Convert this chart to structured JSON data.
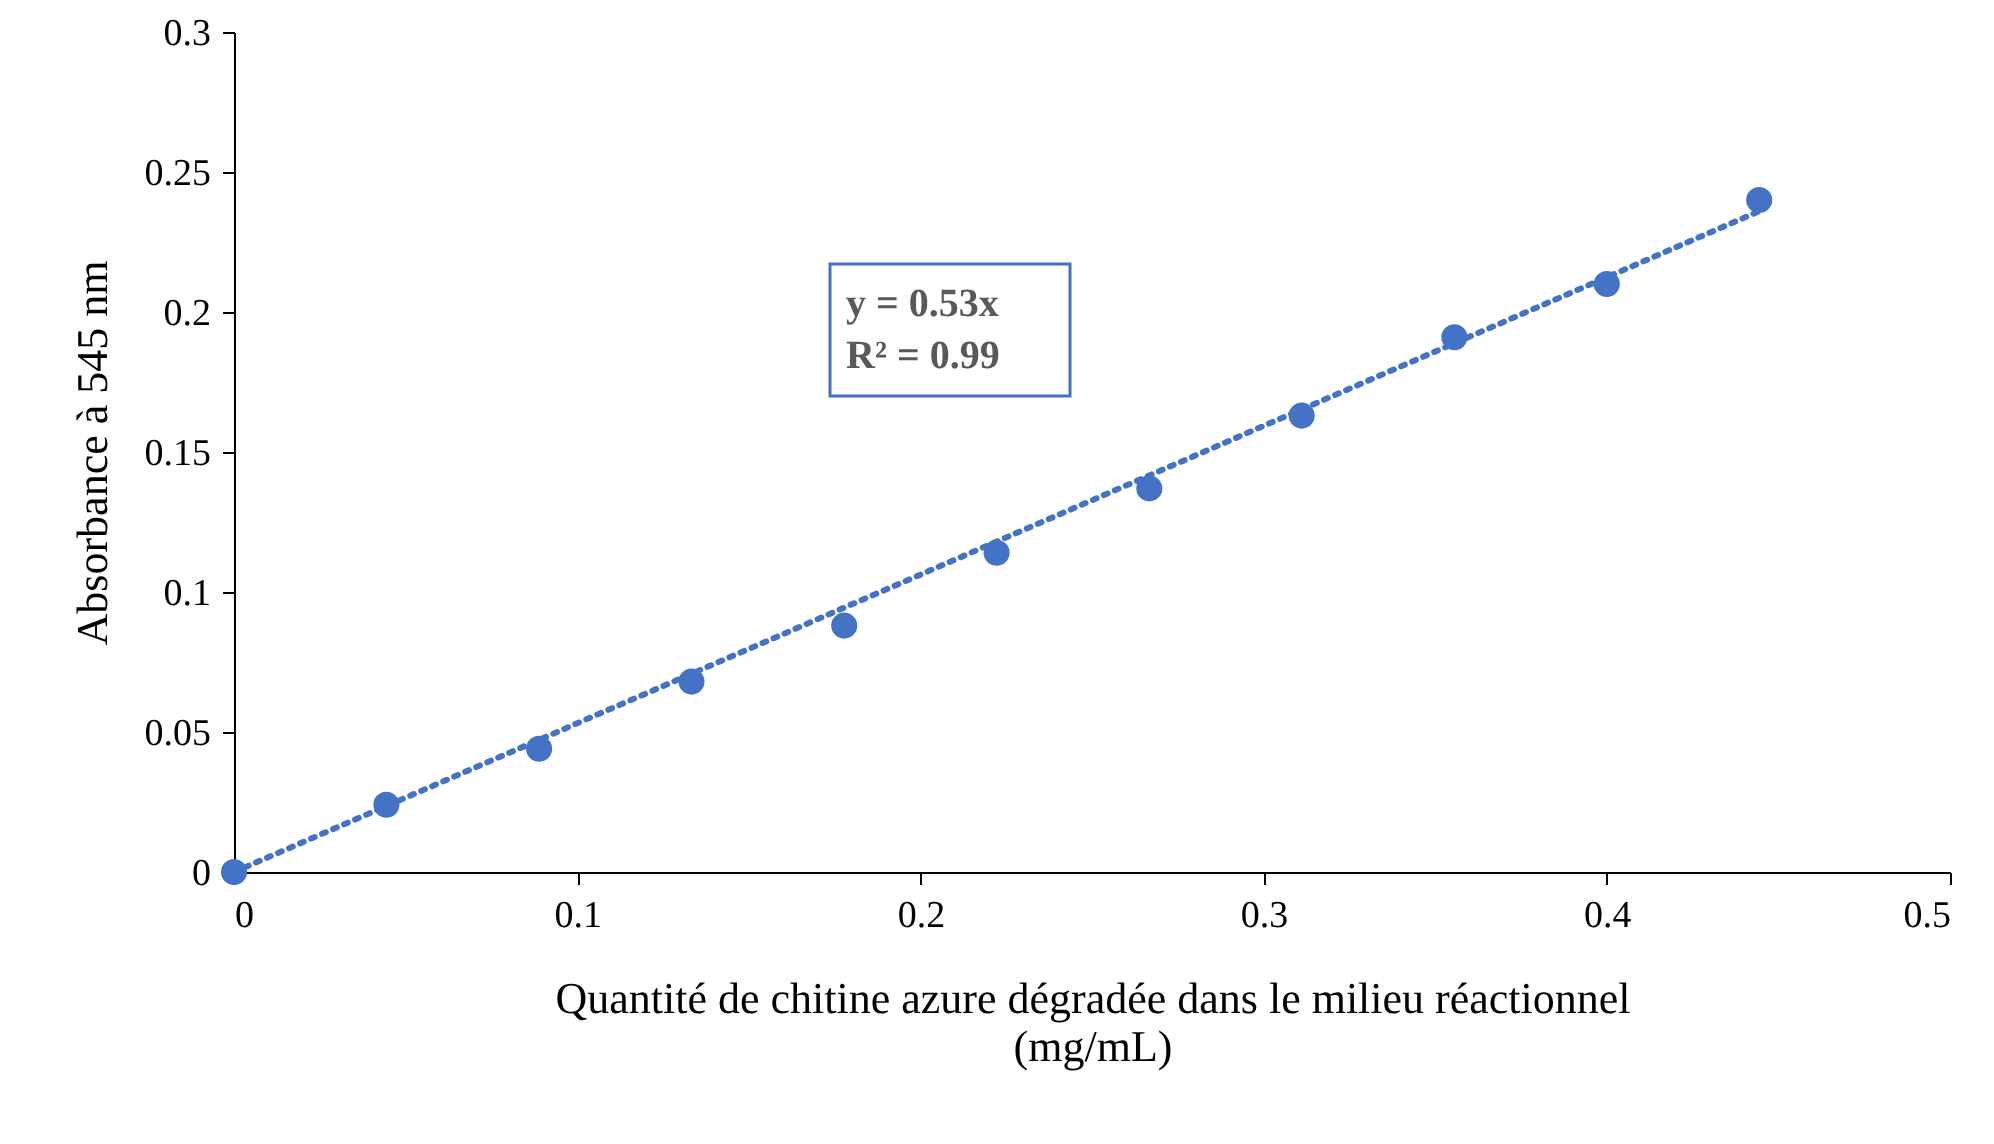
{
  "chart_data": {
    "type": "scatter",
    "xlabel": "Quantité de chitine azure dégradée dans le milieu réactionnel (mg/mL)",
    "ylabel": "Absorbance à 545 nm",
    "series": [
      {
        "color": "#4472c4",
        "marker": "circle",
        "x": [
          0,
          0.0444,
          0.0889,
          0.1333,
          0.1778,
          0.2222,
          0.2667,
          0.3111,
          0.3556,
          0.4,
          0.4444
        ],
        "values": [
          0,
          0.024,
          0.044,
          0.068,
          0.088,
          0.114,
          0.137,
          0.163,
          0.191,
          0.21,
          0.24
        ]
      },
      {
        "type": "line",
        "color": "#4472c4",
        "line_style": "dotted",
        "x": [
          0,
          0.4444
        ],
        "values": [
          0,
          0.236
        ]
      }
    ],
    "annotations": [
      "y = 0.53x",
      "R² = 0.99"
    ],
    "xlim": [
      0,
      0.5
    ],
    "xticks": [
      0,
      0.1,
      0.2,
      0.3,
      0.4,
      0.5
    ],
    "ylim": [
      0,
      0.3
    ],
    "yticks": [
      0,
      0.05,
      0.1,
      0.15,
      0.2,
      0.25,
      0.3
    ],
    "grid": false
  }
}
